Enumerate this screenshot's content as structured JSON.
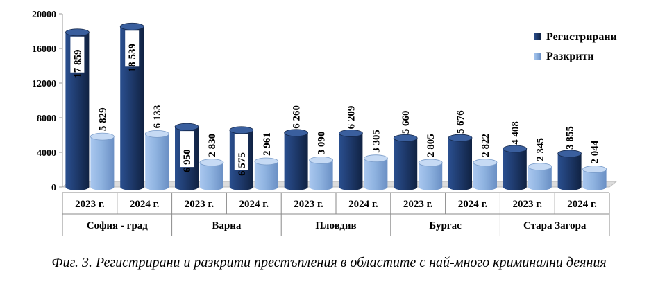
{
  "chart_data": {
    "type": "bar",
    "groups": [
      {
        "name": "София - град",
        "years": [
          "2023 г.",
          "2024 г."
        ]
      },
      {
        "name": "Варна",
        "years": [
          "2023 г.",
          "2024 г."
        ]
      },
      {
        "name": "Пловдив",
        "years": [
          "2023 г.",
          "2024 г."
        ]
      },
      {
        "name": "Бургас",
        "years": [
          "2023 г.",
          "2024 г."
        ]
      },
      {
        "name": "Стара Загора",
        "years": [
          "2023 г.",
          "2024 г."
        ]
      }
    ],
    "series": [
      {
        "name": "Регистрирани",
        "color": "#1f3b6e",
        "values": [
          17859,
          18539,
          6950,
          6575,
          6260,
          6209,
          5660,
          5676,
          4408,
          3855
        ],
        "labels": [
          "17 859",
          "18 539",
          "6 950",
          "6 575",
          "6 260",
          "6 209",
          "5 660",
          "5 676",
          "4 408",
          "3 855"
        ]
      },
      {
        "name": "Разкрити",
        "color": "#8fb3e0",
        "values": [
          5829,
          6133,
          2830,
          2961,
          3090,
          3305,
          2805,
          2822,
          2345,
          2044
        ],
        "labels": [
          "5 829",
          "6 133",
          "2 830",
          "2 961",
          "3 090",
          "3 305",
          "2 805",
          "2 822",
          "2 345",
          "2 044"
        ]
      }
    ],
    "yticks": [
      0,
      4000,
      8000,
      12000,
      16000,
      20000
    ],
    "ylim": [
      0,
      20000
    ],
    "legend_position": "top-right",
    "caption": "Фиг. 3. Регистрирани и разкрити престъпления в областите с най-много криминални деяния"
  }
}
